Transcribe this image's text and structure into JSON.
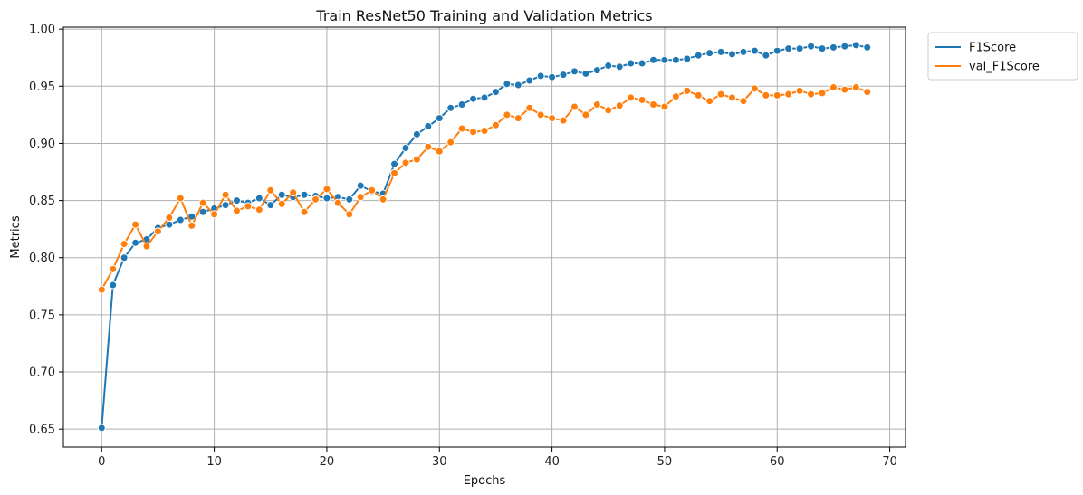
{
  "chart_data": {
    "type": "line",
    "title": "Train ResNet50 Training and Validation Metrics",
    "xlabel": "Epochs",
    "ylabel": "Metrics",
    "xlim": [
      -3.4,
      71.4
    ],
    "ylim": [
      0.6343,
      1.0017
    ],
    "xticks": [
      0,
      10,
      20,
      30,
      40,
      50,
      60,
      70
    ],
    "xtick_labels": [
      "0",
      "10",
      "20",
      "30",
      "40",
      "50",
      "60",
      "70"
    ],
    "yticks": [
      0.65,
      0.7,
      0.75,
      0.8,
      0.85,
      0.9,
      0.95,
      1.0
    ],
    "ytick_labels": [
      "0.65",
      "0.70",
      "0.75",
      "0.80",
      "0.85",
      "0.90",
      "0.95",
      "1.00"
    ],
    "grid": true,
    "legend_position": "outside-top-right",
    "series": [
      {
        "name": "F1Score",
        "color": "#1f77b4",
        "marker": "circle",
        "x": [
          0,
          1,
          2,
          3,
          4,
          5,
          6,
          7,
          8,
          9,
          10,
          11,
          12,
          13,
          14,
          15,
          16,
          17,
          18,
          19,
          20,
          21,
          22,
          23,
          24,
          25,
          26,
          27,
          28,
          29,
          30,
          31,
          32,
          33,
          34,
          35,
          36,
          37,
          38,
          39,
          40,
          41,
          42,
          43,
          44,
          45,
          46,
          47,
          48,
          49,
          50,
          51,
          52,
          53,
          54,
          55,
          56,
          57,
          58,
          59,
          60,
          61,
          62,
          63,
          64,
          65,
          66,
          67,
          68
        ],
        "values": [
          0.651,
          0.776,
          0.8,
          0.813,
          0.816,
          0.826,
          0.829,
          0.833,
          0.836,
          0.84,
          0.843,
          0.846,
          0.85,
          0.848,
          0.852,
          0.846,
          0.855,
          0.853,
          0.855,
          0.854,
          0.852,
          0.853,
          0.851,
          0.863,
          0.858,
          0.856,
          0.882,
          0.896,
          0.908,
          0.915,
          0.922,
          0.931,
          0.934,
          0.939,
          0.94,
          0.945,
          0.952,
          0.951,
          0.955,
          0.959,
          0.958,
          0.96,
          0.963,
          0.961,
          0.964,
          0.968,
          0.967,
          0.97,
          0.97,
          0.973,
          0.973,
          0.973,
          0.974,
          0.977,
          0.979,
          0.98,
          0.978,
          0.98,
          0.981,
          0.977,
          0.981,
          0.983,
          0.983,
          0.985,
          0.983,
          0.984,
          0.985,
          0.986,
          0.984
        ]
      },
      {
        "name": "val_F1Score",
        "color": "#ff7f0e",
        "marker": "circle",
        "x": [
          0,
          1,
          2,
          3,
          4,
          5,
          6,
          7,
          8,
          9,
          10,
          11,
          12,
          13,
          14,
          15,
          16,
          17,
          18,
          19,
          20,
          21,
          22,
          23,
          24,
          25,
          26,
          27,
          28,
          29,
          30,
          31,
          32,
          33,
          34,
          35,
          36,
          37,
          38,
          39,
          40,
          41,
          42,
          43,
          44,
          45,
          46,
          47,
          48,
          49,
          50,
          51,
          52,
          53,
          54,
          55,
          56,
          57,
          58,
          59,
          60,
          61,
          62,
          63,
          64,
          65,
          66,
          67,
          68
        ],
        "values": [
          0.772,
          0.79,
          0.812,
          0.829,
          0.81,
          0.823,
          0.835,
          0.852,
          0.828,
          0.848,
          0.838,
          0.855,
          0.841,
          0.845,
          0.842,
          0.859,
          0.847,
          0.857,
          0.84,
          0.851,
          0.86,
          0.848,
          0.838,
          0.853,
          0.859,
          0.851,
          0.874,
          0.883,
          0.886,
          0.897,
          0.893,
          0.901,
          0.913,
          0.91,
          0.911,
          0.916,
          0.925,
          0.922,
          0.931,
          0.925,
          0.922,
          0.92,
          0.932,
          0.925,
          0.934,
          0.929,
          0.933,
          0.94,
          0.938,
          0.934,
          0.932,
          0.941,
          0.946,
          0.942,
          0.937,
          0.943,
          0.94,
          0.937,
          0.948,
          0.942,
          0.942,
          0.943,
          0.946,
          0.943,
          0.944,
          0.949,
          0.947,
          0.949,
          0.945
        ]
      }
    ]
  }
}
